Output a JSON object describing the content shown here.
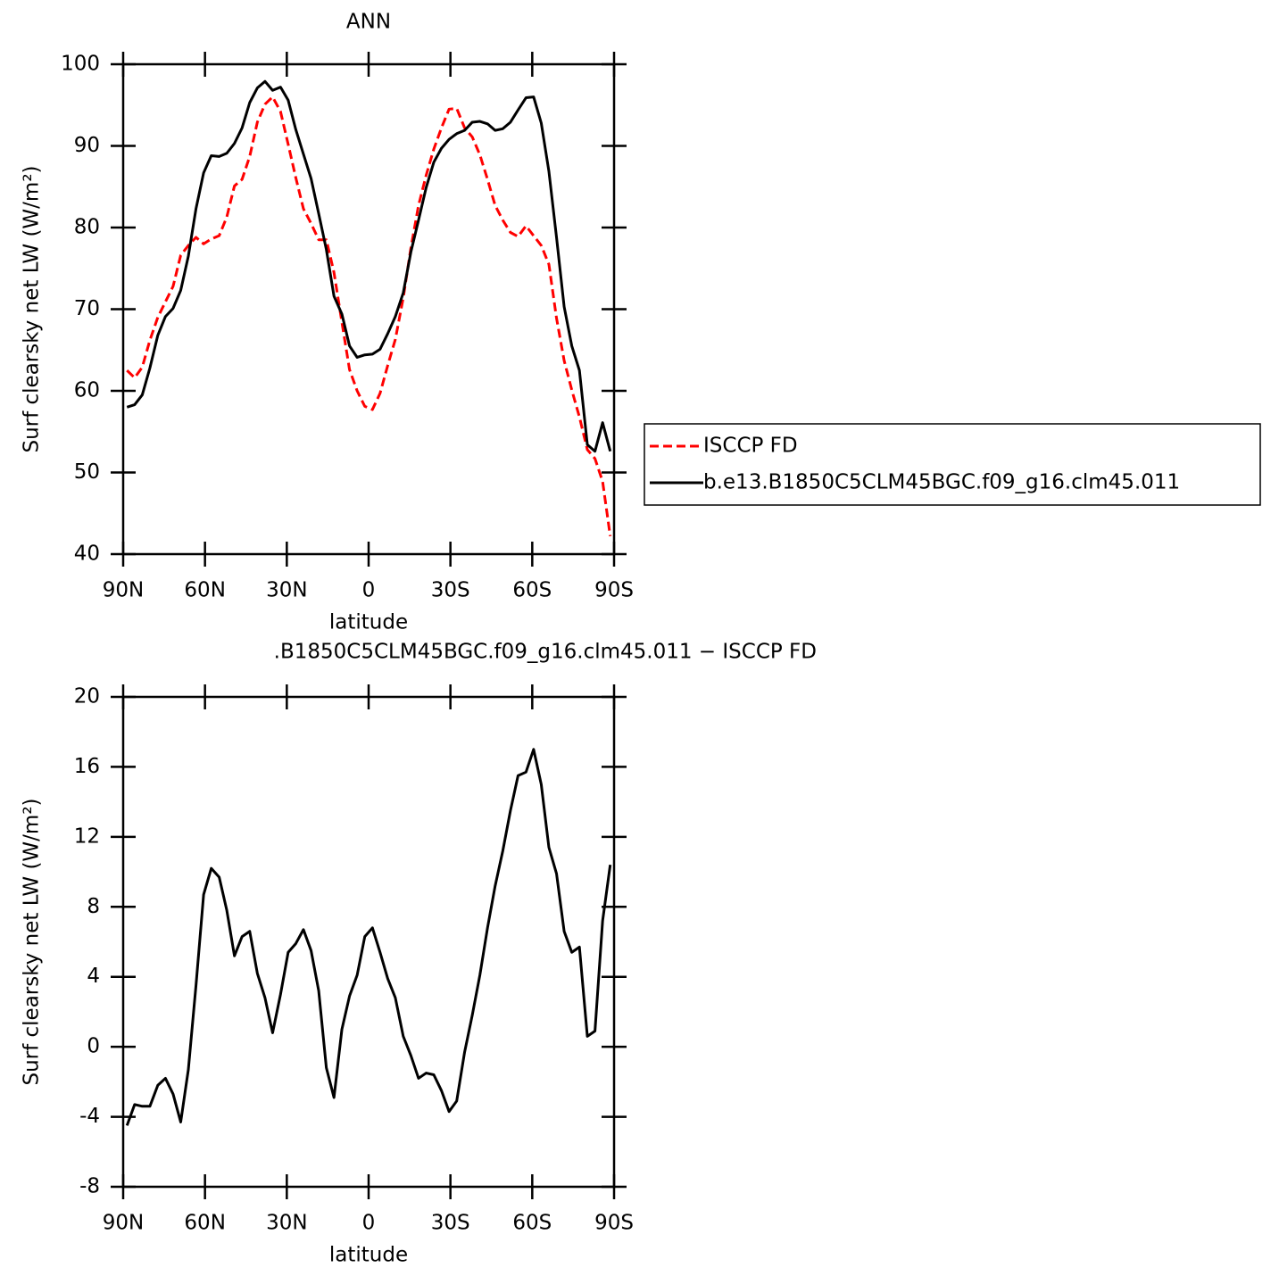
{
  "chart_data": [
    {
      "type": "line",
      "title": "ANN",
      "x_label": "latitude",
      "y_label": "Surf clearsky net LW (W/m²)",
      "xlim": [
        90,
        -90
      ],
      "xticks": [
        {
          "value": 90,
          "label": "90N"
        },
        {
          "value": 60,
          "label": "60N"
        },
        {
          "value": 30,
          "label": "30N"
        },
        0,
        {
          "value": -30,
          "label": "30S"
        },
        {
          "value": -60,
          "label": "60S"
        },
        {
          "value": -90,
          "label": "90S"
        }
      ],
      "ylim": [
        40,
        100
      ],
      "yticks": [
        40,
        50,
        60,
        70,
        80,
        90,
        100
      ],
      "legend": "right",
      "x": [
        88.6,
        85.8,
        83.0,
        80.2,
        77.3,
        74.5,
        71.7,
        68.9,
        66.1,
        63.3,
        60.5,
        57.7,
        54.8,
        52.0,
        49.2,
        46.4,
        43.6,
        40.8,
        38.0,
        35.2,
        32.3,
        29.5,
        26.7,
        23.9,
        21.1,
        18.3,
        15.5,
        12.7,
        9.8,
        7.0,
        4.2,
        1.4,
        -1.4,
        -4.2,
        -7.0,
        -9.8,
        -12.7,
        -15.5,
        -18.3,
        -21.1,
        -23.9,
        -26.7,
        -29.5,
        -32.3,
        -35.2,
        -38.0,
        -40.8,
        -43.6,
        -46.4,
        -49.2,
        -52.0,
        -54.8,
        -57.7,
        -60.5,
        -63.3,
        -66.1,
        -68.9,
        -71.7,
        -74.5,
        -77.3,
        -80.2,
        -83.0,
        -85.8,
        -88.6
      ],
      "series": [
        {
          "name": "ISCCP FD",
          "color": "#ff0000",
          "line_style": "dashed",
          "values": [
            62.5,
            61.6,
            62.9,
            66.2,
            69.0,
            70.9,
            72.8,
            76.6,
            77.8,
            78.8,
            78.0,
            78.6,
            79.0,
            81.3,
            85.1,
            85.9,
            88.7,
            92.9,
            95.1,
            96.0,
            94.2,
            90.2,
            86.1,
            82.3,
            80.5,
            78.5,
            78.5,
            74.5,
            68.4,
            62.6,
            60.0,
            58.1,
            57.7,
            59.7,
            63.1,
            66.3,
            71.4,
            77.5,
            82.7,
            86.4,
            89.6,
            92.2,
            94.5,
            94.6,
            92.2,
            91.1,
            88.9,
            85.9,
            82.7,
            80.9,
            79.4,
            78.9,
            80.2,
            79.0,
            77.8,
            75.5,
            68.9,
            63.7,
            60.1,
            56.8,
            52.8,
            51.7,
            48.9,
            42.2
          ]
        },
        {
          "name": "b.e13.B1850C5CLM45BGC.f09_g16.clm45.011",
          "color": "#000000",
          "line_style": "solid",
          "values": [
            58.0,
            58.3,
            59.5,
            62.8,
            66.8,
            69.1,
            70.1,
            72.3,
            76.5,
            82.3,
            86.7,
            88.8,
            88.7,
            89.1,
            90.3,
            92.2,
            95.3,
            97.1,
            97.9,
            96.8,
            97.2,
            95.6,
            92.0,
            89.0,
            86.0,
            81.7,
            77.3,
            71.6,
            69.4,
            65.5,
            64.1,
            64.4,
            64.5,
            65.1,
            67.0,
            69.1,
            72.0,
            77.0,
            80.9,
            84.9,
            88.0,
            89.7,
            90.8,
            91.5,
            91.9,
            92.9,
            93.0,
            92.7,
            91.9,
            92.1,
            92.9,
            94.4,
            95.9,
            96.0,
            92.8,
            86.9,
            78.8,
            70.3,
            65.5,
            62.5,
            53.4,
            52.6,
            56.1,
            52.6
          ]
        }
      ]
    },
    {
      "type": "line",
      "title": ".B1850C5CLM45BGC.f09_g16.clm45.011 − ISCCP FD",
      "x_label": "latitude",
      "y_label": "Surf clearsky net LW (W/m²)",
      "xlim": [
        90,
        -90
      ],
      "xticks": [
        {
          "value": 90,
          "label": "90N"
        },
        {
          "value": 60,
          "label": "60N"
        },
        {
          "value": 30,
          "label": "30N"
        },
        0,
        {
          "value": -30,
          "label": "30S"
        },
        {
          "value": -60,
          "label": "60S"
        },
        {
          "value": -90,
          "label": "90S"
        }
      ],
      "ylim": [
        -8,
        20
      ],
      "yticks": [
        -8,
        -4,
        0,
        4,
        8,
        12,
        16,
        20
      ],
      "x": [
        88.6,
        85.8,
        83.0,
        80.2,
        77.3,
        74.5,
        71.7,
        68.9,
        66.1,
        63.3,
        60.5,
        57.7,
        54.8,
        52.0,
        49.2,
        46.4,
        43.6,
        40.8,
        38.0,
        35.2,
        32.3,
        29.5,
        26.7,
        23.9,
        21.1,
        18.3,
        15.5,
        12.7,
        9.8,
        7.0,
        4.2,
        1.4,
        -1.4,
        -4.2,
        -7.0,
        -9.8,
        -12.7,
        -15.5,
        -18.3,
        -21.1,
        -23.9,
        -26.7,
        -29.5,
        -32.3,
        -35.2,
        -38.0,
        -40.8,
        -43.6,
        -46.4,
        -49.2,
        -52.0,
        -54.8,
        -57.7,
        -60.5,
        -63.3,
        -66.1,
        -68.9,
        -71.7,
        -74.5,
        -77.3,
        -80.2,
        -83.0,
        -85.8,
        -88.6
      ],
      "series": [
        {
          "color": "#000000",
          "line_style": "solid",
          "values": [
            -4.5,
            -3.3,
            -3.4,
            -3.4,
            -2.2,
            -1.8,
            -2.7,
            -4.3,
            -1.3,
            3.5,
            8.7,
            10.2,
            9.7,
            7.8,
            5.2,
            6.3,
            6.6,
            4.2,
            2.8,
            0.8,
            3.0,
            5.4,
            5.9,
            6.7,
            5.5,
            3.2,
            -1.2,
            -2.9,
            1.0,
            2.9,
            4.1,
            6.3,
            6.8,
            5.4,
            3.9,
            2.8,
            0.6,
            -0.5,
            -1.8,
            -1.5,
            -1.6,
            -2.5,
            -3.7,
            -3.1,
            -0.3,
            1.8,
            4.1,
            6.8,
            9.2,
            11.2,
            13.5,
            15.5,
            15.7,
            17.0,
            15.0,
            11.4,
            9.9,
            6.6,
            5.4,
            5.7,
            0.6,
            0.9,
            7.2,
            10.4
          ]
        }
      ]
    }
  ]
}
